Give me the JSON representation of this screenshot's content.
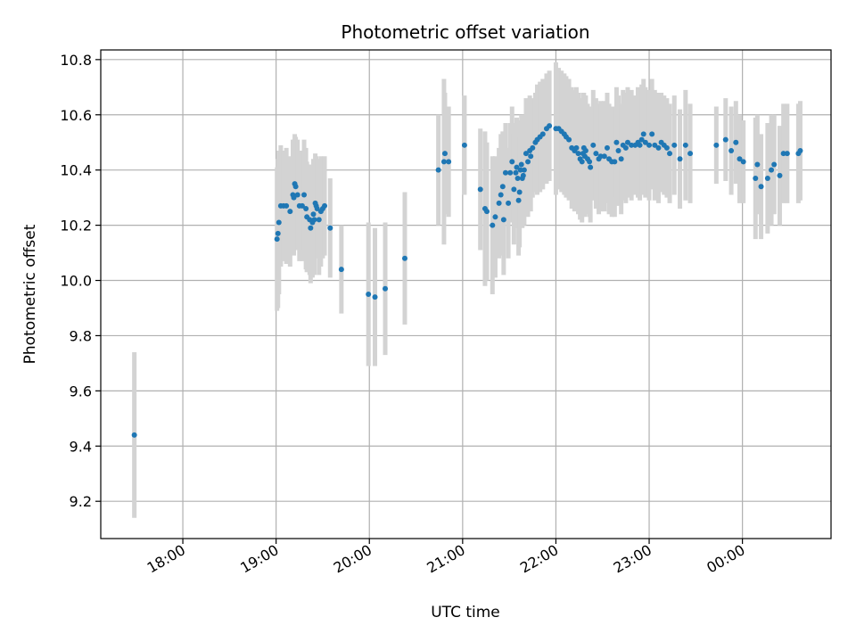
{
  "chart_data": {
    "type": "scatter",
    "title": "Photometric offset variation",
    "xlabel": "UTC time",
    "ylabel": "Photometric offset",
    "x_unit": "hours UTC (values past 24 are after midnight)",
    "xlim": [
      17.12,
      24.95
    ],
    "ylim": [
      9.065,
      10.835
    ],
    "x_ticks": [
      {
        "value": 18,
        "label": "18:00"
      },
      {
        "value": 19,
        "label": "19:00"
      },
      {
        "value": 20,
        "label": "20:00"
      },
      {
        "value": 21,
        "label": "21:00"
      },
      {
        "value": 22,
        "label": "22:00"
      },
      {
        "value": 23,
        "label": "23:00"
      },
      {
        "value": 24,
        "label": "00:00"
      }
    ],
    "y_ticks": [
      {
        "value": 9.2,
        "label": "9.2"
      },
      {
        "value": 9.4,
        "label": "9.4"
      },
      {
        "value": 9.6,
        "label": "9.6"
      },
      {
        "value": 9.8,
        "label": "9.8"
      },
      {
        "value": 10.0,
        "label": "10.0"
      },
      {
        "value": 10.2,
        "label": "10.2"
      },
      {
        "value": 10.4,
        "label": "10.4"
      },
      {
        "value": 10.6,
        "label": "10.6"
      },
      {
        "value": 10.8,
        "label": "10.8"
      }
    ],
    "grid": true,
    "colors": {
      "point": "#1f77b4",
      "error_bar": "#d3d3d3",
      "grid": "#b0b0b0"
    },
    "series": [
      {
        "points": [
          [
            17.48,
            9.44,
            0.3
          ],
          [
            19.01,
            10.15,
            0.26
          ],
          [
            19.02,
            10.17,
            0.27
          ],
          [
            19.03,
            10.21,
            0.26
          ],
          [
            19.05,
            10.27,
            0.22
          ],
          [
            19.08,
            10.27,
            0.2
          ],
          [
            19.11,
            10.27,
            0.21
          ],
          [
            19.15,
            10.25,
            0.2
          ],
          [
            19.18,
            10.31,
            0.2
          ],
          [
            19.19,
            10.3,
            0.21
          ],
          [
            19.2,
            10.35,
            0.18
          ],
          [
            19.21,
            10.34,
            0.18
          ],
          [
            19.23,
            10.31,
            0.2
          ],
          [
            19.25,
            10.27,
            0.2
          ],
          [
            19.28,
            10.27,
            0.2
          ],
          [
            19.3,
            10.31,
            0.2
          ],
          [
            19.32,
            10.26,
            0.22
          ],
          [
            19.33,
            10.23,
            0.2
          ],
          [
            19.36,
            10.22,
            0.2
          ],
          [
            19.37,
            10.19,
            0.2
          ],
          [
            19.39,
            10.21,
            0.2
          ],
          [
            19.4,
            10.24,
            0.2
          ],
          [
            19.41,
            10.22,
            0.2
          ],
          [
            19.42,
            10.28,
            0.18
          ],
          [
            19.43,
            10.27,
            0.18
          ],
          [
            19.44,
            10.26,
            0.18
          ],
          [
            19.46,
            10.22,
            0.2
          ],
          [
            19.48,
            10.25,
            0.2
          ],
          [
            19.5,
            10.26,
            0.18
          ],
          [
            19.52,
            10.27,
            0.18
          ],
          [
            19.58,
            10.19,
            0.18
          ],
          [
            19.7,
            10.04,
            0.16
          ],
          [
            19.99,
            9.95,
            0.26
          ],
          [
            20.06,
            9.94,
            0.25
          ],
          [
            20.17,
            9.97,
            0.24
          ],
          [
            20.38,
            10.08,
            0.24
          ],
          [
            20.74,
            10.4,
            0.2
          ],
          [
            20.8,
            10.43,
            0.3
          ],
          [
            20.81,
            10.46,
            0.22
          ],
          [
            20.85,
            10.43,
            0.2
          ],
          [
            21.02,
            10.49,
            0.18
          ],
          [
            21.19,
            10.33,
            0.22
          ],
          [
            21.24,
            10.26,
            0.28
          ],
          [
            21.26,
            10.25,
            0.25
          ],
          [
            21.32,
            10.2,
            0.25
          ],
          [
            21.35,
            10.23,
            0.22
          ],
          [
            21.39,
            10.28,
            0.2
          ],
          [
            21.41,
            10.31,
            0.22
          ],
          [
            21.43,
            10.34,
            0.2
          ],
          [
            21.44,
            10.22,
            0.2
          ],
          [
            21.46,
            10.39,
            0.18
          ],
          [
            21.49,
            10.28,
            0.2
          ],
          [
            21.51,
            10.39,
            0.18
          ],
          [
            21.53,
            10.43,
            0.2
          ],
          [
            21.55,
            10.33,
            0.2
          ],
          [
            21.57,
            10.39,
            0.18
          ],
          [
            21.58,
            10.41,
            0.18
          ],
          [
            21.59,
            10.37,
            0.18
          ],
          [
            21.6,
            10.29,
            0.2
          ],
          [
            21.61,
            10.32,
            0.2
          ],
          [
            21.62,
            10.4,
            0.18
          ],
          [
            21.63,
            10.42,
            0.18
          ],
          [
            21.64,
            10.37,
            0.18
          ],
          [
            21.65,
            10.38,
            0.18
          ],
          [
            21.66,
            10.4,
            0.2
          ],
          [
            21.68,
            10.46,
            0.2
          ],
          [
            21.7,
            10.43,
            0.2
          ],
          [
            21.72,
            10.47,
            0.2
          ],
          [
            21.73,
            10.45,
            0.2
          ],
          [
            21.75,
            10.48,
            0.18
          ],
          [
            21.78,
            10.5,
            0.18
          ],
          [
            21.8,
            10.51,
            0.2
          ],
          [
            21.83,
            10.52,
            0.2
          ],
          [
            21.86,
            10.53,
            0.2
          ],
          [
            21.9,
            10.55,
            0.2
          ],
          [
            21.93,
            10.56,
            0.2
          ],
          [
            22.0,
            10.55,
            0.24
          ],
          [
            22.03,
            10.55,
            0.22
          ],
          [
            22.06,
            10.54,
            0.22
          ],
          [
            22.09,
            10.53,
            0.22
          ],
          [
            22.11,
            10.52,
            0.22
          ],
          [
            22.14,
            10.51,
            0.22
          ],
          [
            22.17,
            10.48,
            0.22
          ],
          [
            22.2,
            10.47,
            0.22
          ],
          [
            22.22,
            10.48,
            0.22
          ],
          [
            22.24,
            10.46,
            0.22
          ],
          [
            22.26,
            10.44,
            0.22
          ],
          [
            22.28,
            10.43,
            0.22
          ],
          [
            22.29,
            10.46,
            0.22
          ],
          [
            22.3,
            10.48,
            0.2
          ],
          [
            22.31,
            10.45,
            0.22
          ],
          [
            22.32,
            10.47,
            0.2
          ],
          [
            22.34,
            10.44,
            0.2
          ],
          [
            22.36,
            10.43,
            0.2
          ],
          [
            22.37,
            10.41,
            0.2
          ],
          [
            22.4,
            10.49,
            0.2
          ],
          [
            22.43,
            10.46,
            0.2
          ],
          [
            22.46,
            10.44,
            0.2
          ],
          [
            22.48,
            10.45,
            0.2
          ],
          [
            22.52,
            10.45,
            0.2
          ],
          [
            22.55,
            10.48,
            0.2
          ],
          [
            22.57,
            10.44,
            0.2
          ],
          [
            22.6,
            10.43,
            0.2
          ],
          [
            22.63,
            10.43,
            0.2
          ],
          [
            22.65,
            10.5,
            0.2
          ],
          [
            22.67,
            10.47,
            0.2
          ],
          [
            22.7,
            10.44,
            0.2
          ],
          [
            22.72,
            10.49,
            0.2
          ],
          [
            22.75,
            10.48,
            0.2
          ],
          [
            22.77,
            10.5,
            0.2
          ],
          [
            22.81,
            10.49,
            0.2
          ],
          [
            22.85,
            10.49,
            0.18
          ],
          [
            22.88,
            10.5,
            0.2
          ],
          [
            22.9,
            10.49,
            0.2
          ],
          [
            22.92,
            10.51,
            0.2
          ],
          [
            22.94,
            10.53,
            0.2
          ],
          [
            22.96,
            10.5,
            0.2
          ],
          [
            23.0,
            10.49,
            0.2
          ],
          [
            23.03,
            10.53,
            0.2
          ],
          [
            23.06,
            10.49,
            0.2
          ],
          [
            23.1,
            10.48,
            0.2
          ],
          [
            23.13,
            10.5,
            0.18
          ],
          [
            23.16,
            10.49,
            0.18
          ],
          [
            23.19,
            10.48,
            0.18
          ],
          [
            23.22,
            10.46,
            0.18
          ],
          [
            23.27,
            10.49,
            0.18
          ],
          [
            23.33,
            10.44,
            0.18
          ],
          [
            23.39,
            10.49,
            0.2
          ],
          [
            23.44,
            10.46,
            0.18
          ],
          [
            23.72,
            10.49,
            0.14
          ],
          [
            23.82,
            10.51,
            0.15
          ],
          [
            23.88,
            10.47,
            0.16
          ],
          [
            23.93,
            10.5,
            0.15
          ],
          [
            23.97,
            10.44,
            0.16
          ],
          [
            24.01,
            10.43,
            0.15
          ],
          [
            24.14,
            10.37,
            0.22
          ],
          [
            24.16,
            10.42,
            0.18
          ],
          [
            24.2,
            10.34,
            0.19
          ],
          [
            24.27,
            10.37,
            0.2
          ],
          [
            24.31,
            10.4,
            0.2
          ],
          [
            24.34,
            10.42,
            0.18
          ],
          [
            24.4,
            10.38,
            0.18
          ],
          [
            24.44,
            10.46,
            0.18
          ],
          [
            24.48,
            10.46,
            0.18
          ],
          [
            24.6,
            10.46,
            0.18
          ],
          [
            24.62,
            10.47,
            0.18
          ]
        ]
      }
    ]
  }
}
